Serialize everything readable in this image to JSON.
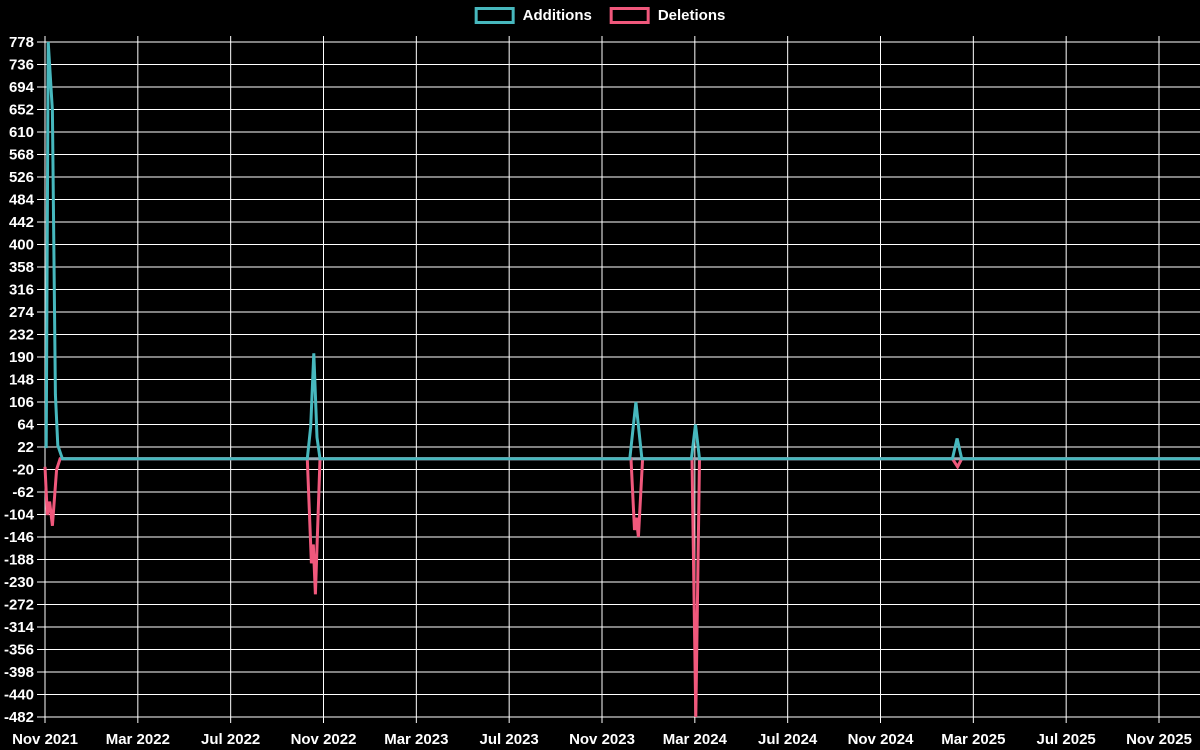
{
  "chart_data": {
    "type": "line",
    "title": "",
    "background_color": "#000000",
    "grid": true,
    "grid_color": "#ffffff",
    "zero_line_color": "#93aab5",
    "text_color": "#ffffff",
    "legend_position": "top-center",
    "legend": [
      {
        "label": "Additions",
        "color": "#47b8be"
      },
      {
        "label": "Deletions",
        "color": "#f0587c"
      }
    ],
    "ylim": [
      -482,
      778
    ],
    "y_tick_step": 42,
    "y_ticks": [
      778,
      736,
      694,
      652,
      610,
      568,
      526,
      484,
      442,
      400,
      358,
      316,
      274,
      232,
      190,
      148,
      106,
      64,
      22,
      -20,
      -62,
      -104,
      -146,
      -188,
      -230,
      -272,
      -314,
      -356,
      -398,
      -440,
      -482
    ],
    "x_ticks": [
      "Nov 2021",
      "Mar 2022",
      "Jul 2022",
      "Nov 2022",
      "Mar 2023",
      "Jul 2023",
      "Nov 2023",
      "Mar 2024",
      "Jul 2024",
      "Nov 2024",
      "Mar 2025",
      "Jul 2025",
      "Nov 2025"
    ],
    "x_unit": "months since Nov 2021",
    "x_months_per_tick": 4,
    "series": [
      {
        "name": "Additions",
        "color": "#47b8be",
        "points": [
          [
            0.05,
            20
          ],
          [
            0.14,
            778
          ],
          [
            0.32,
            650
          ],
          [
            0.45,
            120
          ],
          [
            0.55,
            25
          ],
          [
            0.75,
            0
          ],
          [
            11.3,
            0
          ],
          [
            11.45,
            60
          ],
          [
            11.58,
            197
          ],
          [
            11.72,
            40
          ],
          [
            11.85,
            0
          ],
          [
            25.2,
            0
          ],
          [
            25.46,
            106
          ],
          [
            25.72,
            0
          ],
          [
            27.85,
            0
          ],
          [
            28.03,
            64
          ],
          [
            28.2,
            0
          ],
          [
            39.1,
            0
          ],
          [
            39.3,
            38
          ],
          [
            39.5,
            0
          ],
          [
            49.8,
            0
          ]
        ]
      },
      {
        "name": "Deletions",
        "color": "#f0587c",
        "points": [
          [
            0.0,
            -15
          ],
          [
            0.1,
            -105
          ],
          [
            0.2,
            -80
          ],
          [
            0.32,
            -125
          ],
          [
            0.5,
            -20
          ],
          [
            0.65,
            0
          ],
          [
            11.3,
            0
          ],
          [
            11.48,
            -195
          ],
          [
            11.56,
            -160
          ],
          [
            11.65,
            -253
          ],
          [
            11.85,
            0
          ],
          [
            25.25,
            0
          ],
          [
            25.4,
            -133
          ],
          [
            25.48,
            -110
          ],
          [
            25.57,
            -146
          ],
          [
            25.75,
            0
          ],
          [
            27.88,
            0
          ],
          [
            28.04,
            -482
          ],
          [
            28.2,
            0
          ],
          [
            39.1,
            0
          ],
          [
            39.32,
            -15
          ],
          [
            39.5,
            0
          ],
          [
            49.8,
            0
          ]
        ]
      }
    ]
  }
}
